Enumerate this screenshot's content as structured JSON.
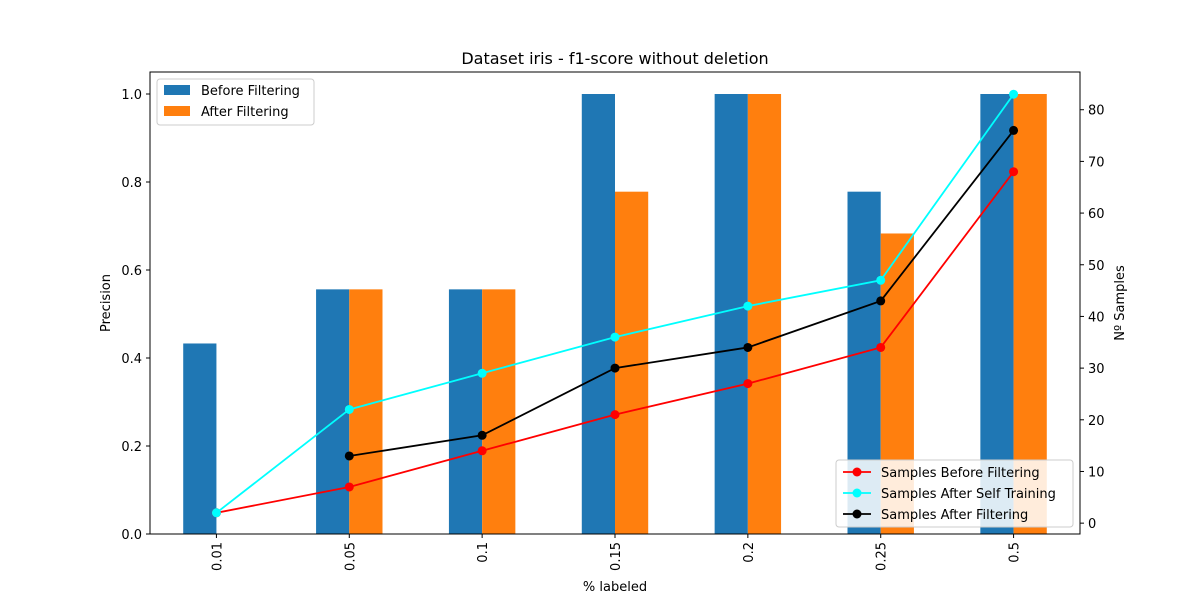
{
  "chart_data": {
    "type": "bar+line",
    "title": "Dataset iris - f1-score without deletion",
    "xlabel": "% labeled",
    "ylabel_left": "Precision",
    "ylabel_right": "Nº Samples",
    "categories": [
      "0.01",
      "0.05",
      "0.1",
      "0.15",
      "0.2",
      "0.25",
      "0.5"
    ],
    "ylim_left": [
      0,
      1.05
    ],
    "ylim_right": [
      -2.1,
      87.3
    ],
    "yticks_left": [
      "0.0",
      "0.2",
      "0.4",
      "0.6",
      "0.8",
      "1.0"
    ],
    "yticks_right": [
      "0",
      "10",
      "20",
      "30",
      "40",
      "50",
      "60",
      "70",
      "80"
    ],
    "bar_series": [
      {
        "name": "Before Filtering",
        "color": "#1f77b4",
        "values": [
          0.433,
          0.556,
          0.556,
          1.0,
          1.0,
          0.778,
          1.0
        ]
      },
      {
        "name": "After Filtering",
        "color": "#ff7f0e",
        "values": [
          null,
          0.556,
          0.556,
          0.778,
          1.0,
          0.683,
          1.0
        ]
      }
    ],
    "line_series": [
      {
        "name": "Samples Before Filtering",
        "color": "#ff0000",
        "values": [
          2,
          7,
          14,
          21,
          27,
          34,
          68
        ]
      },
      {
        "name": "Samples After Self Training",
        "color": "#00ffff",
        "values": [
          2,
          22,
          29,
          36,
          42,
          47,
          83
        ]
      },
      {
        "name": "Samples After Filtering",
        "color": "#000000",
        "values": [
          null,
          13,
          17,
          30,
          34,
          43,
          76
        ]
      }
    ],
    "legend_bars_location": "upper-left",
    "legend_lines_location": "lower-right"
  }
}
